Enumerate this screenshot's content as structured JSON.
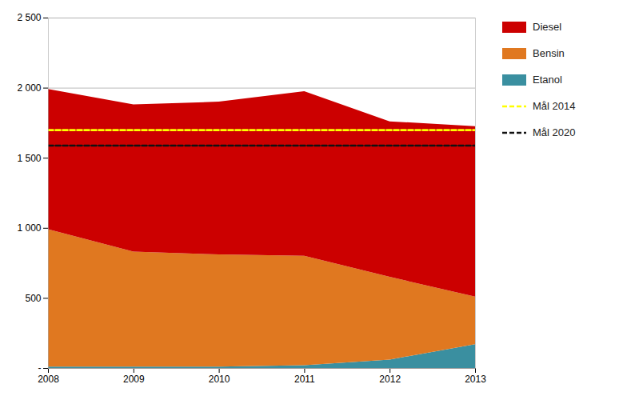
{
  "chart_data": {
    "type": "area",
    "stacked": true,
    "x": [
      2008,
      2009,
      2010,
      2011,
      2012,
      2013
    ],
    "series": [
      {
        "name": "Etanol",
        "color": "#3a8fa0",
        "values": [
          10,
          10,
          10,
          20,
          60,
          170
        ]
      },
      {
        "name": "Bensin",
        "color": "#e07820",
        "values": [
          980,
          820,
          800,
          780,
          590,
          340
        ]
      },
      {
        "name": "Diesel",
        "color": "#cc0000",
        "values": [
          1000,
          1050,
          1090,
          1175,
          1110,
          1215
        ]
      },
      {
        "name": "Mål 2014",
        "type": "line",
        "line_style": "dashed",
        "color": "#ffff00",
        "values": [
          1700,
          1700,
          1700,
          1700,
          1700,
          1700
        ]
      },
      {
        "name": "Mål 2020",
        "type": "line",
        "line_style": "dashed",
        "color": "#111111",
        "values": [
          1590,
          1590,
          1590,
          1590,
          1590,
          1590
        ]
      }
    ],
    "xlim": [
      2008,
      2013
    ],
    "xticks": [
      2008,
      2009,
      2010,
      2011,
      2012,
      2013
    ],
    "ylim": [
      0,
      2500
    ],
    "yticks": [
      {
        "value": 0,
        "label": "-"
      },
      500,
      {
        "value": 1000,
        "label": "1 000"
      },
      {
        "value": 1500,
        "label": "1 500"
      },
      {
        "value": 2000,
        "label": "2 000"
      },
      {
        "value": 2500,
        "label": "2 500"
      }
    ],
    "grid": true,
    "legend": "right"
  }
}
